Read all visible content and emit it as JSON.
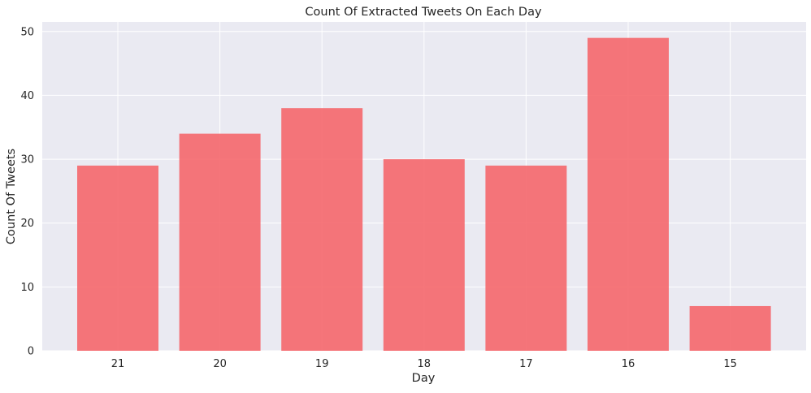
{
  "chart_data": {
    "type": "bar",
    "title": "Count Of Extracted Tweets On Each Day",
    "xlabel": "Day",
    "ylabel": "Count Of Tweets",
    "categories": [
      "21",
      "20",
      "19",
      "18",
      "17",
      "16",
      "15"
    ],
    "values": [
      29,
      34,
      38,
      30,
      29,
      49,
      7
    ],
    "ylim": [
      0,
      51.5
    ],
    "yticks": [
      0,
      10,
      20,
      30,
      40,
      50
    ],
    "grid": true,
    "legend": "none",
    "colors": {
      "bar": "#f5676b",
      "plot_background": "#eaeaf2",
      "grid": "#ffffff"
    }
  }
}
